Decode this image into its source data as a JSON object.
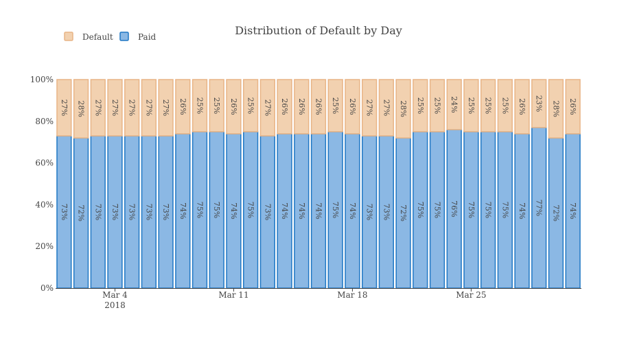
{
  "chart_data": {
    "type": "bar",
    "stacked": true,
    "title": "Distribution of Default by Day",
    "ylim": [
      0,
      100
    ],
    "ytick_labels": [
      "0%",
      "20%",
      "40%",
      "60%",
      "80%",
      "100%"
    ],
    "yticks": [
      0,
      20,
      40,
      60,
      80,
      100
    ],
    "x_start": "2018-03-01",
    "xtick_labels": [
      {
        "date": "2018-03-04",
        "label": "Mar 4",
        "sublabel": "2018"
      },
      {
        "date": "2018-03-11",
        "label": "Mar 11",
        "sublabel": ""
      },
      {
        "date": "2018-03-18",
        "label": "Mar 18",
        "sublabel": ""
      },
      {
        "date": "2018-03-25",
        "label": "Mar 25",
        "sublabel": ""
      }
    ],
    "legend_position": "top-left",
    "series": [
      {
        "name": "Paid",
        "color_fill": "#8bb8e4",
        "color_line": "#1f77c4",
        "values": [
          73,
          72,
          73,
          73,
          73,
          73,
          73,
          74,
          75,
          75,
          74,
          75,
          73,
          74,
          74,
          74,
          75,
          74,
          73,
          73,
          72,
          75,
          75,
          76,
          75,
          75,
          75,
          74,
          77,
          72,
          74
        ]
      },
      {
        "name": "Default",
        "color_fill": "#f2d1b0",
        "color_line": "#e8b486",
        "values": [
          27,
          28,
          27,
          27,
          27,
          27,
          27,
          26,
          25,
          25,
          26,
          25,
          27,
          26,
          26,
          26,
          25,
          26,
          27,
          27,
          28,
          25,
          25,
          24,
          25,
          25,
          25,
          26,
          23,
          28,
          26
        ]
      }
    ],
    "legend": [
      {
        "name": "Default",
        "color_fill": "#f2d1b0",
        "color_line": "#e8b486"
      },
      {
        "name": "Paid",
        "color_fill": "#8bb8e4",
        "color_line": "#1f77c4"
      }
    ]
  }
}
